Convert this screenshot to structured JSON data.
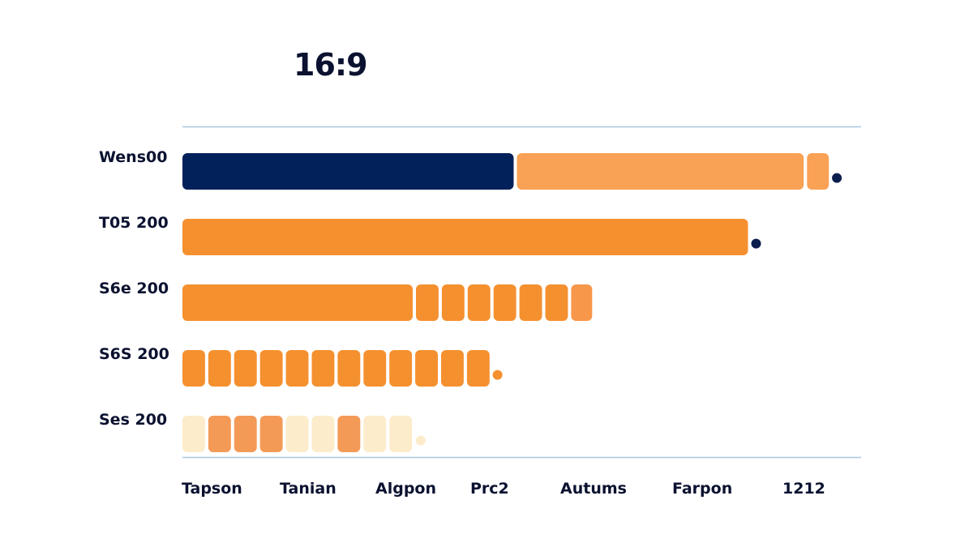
{
  "chart_data": {
    "type": "bar",
    "orientation": "horizontal",
    "title": "16:9",
    "categories": [
      "Wens00",
      "T05 200",
      "S6e 200",
      "S6S 200",
      "Ses 200"
    ],
    "x_tick_labels": [
      "Tapson",
      "Tanian",
      "Algpon",
      "Prc2",
      "Autums",
      "Farpon",
      "1212"
    ],
    "rows": [
      {
        "label": "Wens00",
        "segments": [
          {
            "value": 41,
            "color": "#02205a"
          },
          {
            "value": 35.5,
            "color": "#f9a155"
          },
          {
            "value": 2.7,
            "color": "#f9a155"
          }
        ],
        "end_marker": {
          "value": 81,
          "color": "#0b1e4d"
        }
      },
      {
        "label": "T05 200",
        "segments": [
          {
            "value": 70,
            "color": "#f5902f"
          }
        ],
        "end_marker": {
          "value": 71,
          "color": "#0b1e4d"
        }
      },
      {
        "label": "S6e 200",
        "segments": [
          {
            "value": 28.5,
            "color": "#f5902f"
          },
          {
            "value": 2.8,
            "color": "#f5902f"
          },
          {
            "value": 2.8,
            "color": "#f5902f"
          },
          {
            "value": 2.8,
            "color": "#f5902f"
          },
          {
            "value": 2.8,
            "color": "#f5902f"
          },
          {
            "value": 2.8,
            "color": "#f5902f"
          },
          {
            "value": 2.8,
            "color": "#f5902f"
          },
          {
            "value": 2.6,
            "color": "#f7974a"
          }
        ]
      },
      {
        "label": "S6S 200",
        "segments": [
          {
            "value": 2.8,
            "color": "#f5902f"
          },
          {
            "value": 2.8,
            "color": "#f5902f"
          },
          {
            "value": 2.8,
            "color": "#f5902f"
          },
          {
            "value": 2.8,
            "color": "#f5902f"
          },
          {
            "value": 2.8,
            "color": "#f5902f"
          },
          {
            "value": 2.8,
            "color": "#f5902f"
          },
          {
            "value": 2.8,
            "color": "#f5902f"
          },
          {
            "value": 2.8,
            "color": "#f5902f"
          },
          {
            "value": 2.8,
            "color": "#f5902f"
          },
          {
            "value": 2.8,
            "color": "#f5902f"
          },
          {
            "value": 2.8,
            "color": "#f5902f"
          },
          {
            "value": 2.8,
            "color": "#f5902f"
          }
        ],
        "end_marker": {
          "value": 39,
          "color": "#f5902f"
        }
      },
      {
        "label": "Ses 200",
        "segments": [
          {
            "value": 2.8,
            "color": "#fdeccb"
          },
          {
            "value": 2.8,
            "color": "#f49a57"
          },
          {
            "value": 2.8,
            "color": "#f49a57"
          },
          {
            "value": 2.8,
            "color": "#f49a57"
          },
          {
            "value": 2.8,
            "color": "#fdeccb"
          },
          {
            "value": 2.8,
            "color": "#fdeccb"
          },
          {
            "value": 2.8,
            "color": "#f49a57"
          },
          {
            "value": 2.8,
            "color": "#fdeccb"
          },
          {
            "value": 2.8,
            "color": "#fdeccb"
          }
        ],
        "end_marker": {
          "value": 29.5,
          "color": "#fdeccb"
        }
      }
    ],
    "xlim": [
      0,
      84
    ],
    "grid": false,
    "colors": {
      "axis_line": "#a9c7e0",
      "text": "#0b1230"
    }
  }
}
